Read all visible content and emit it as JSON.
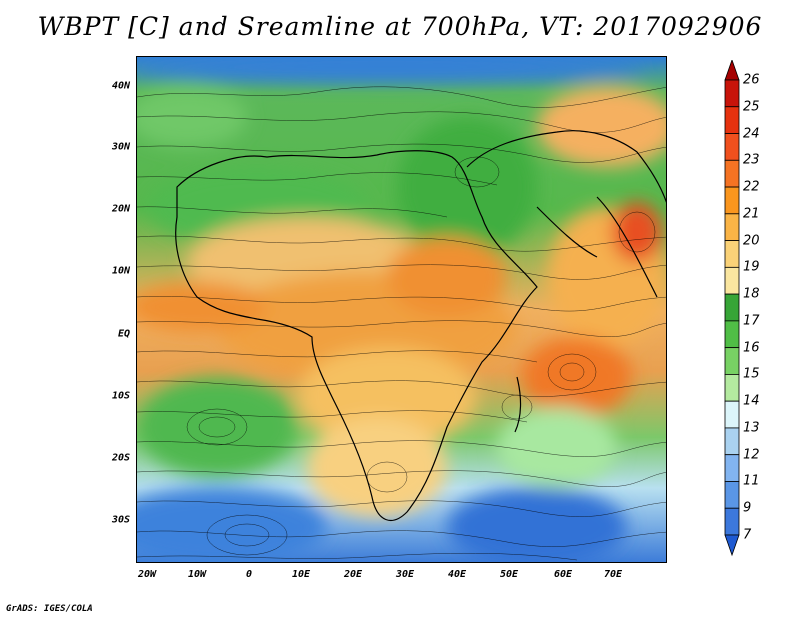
{
  "title": "WBPT [C] and Sreamline at 700hPa, VT: 2017092906",
  "credit": "GrADS: IGES/COLA",
  "lat_labels": [
    "40N",
    "30N",
    "20N",
    "10N",
    "EQ",
    "10S",
    "20S",
    "30S"
  ],
  "lon_labels": [
    "20W",
    "10W",
    "0",
    "10E",
    "20E",
    "30E",
    "40E",
    "50E",
    "60E",
    "70E"
  ],
  "colorbar": {
    "labels": [
      "26",
      "25",
      "24",
      "23",
      "22",
      "21",
      "20",
      "19",
      "18",
      "17",
      "16",
      "15",
      "14",
      "13",
      "12",
      "11",
      "9",
      "7"
    ],
    "colors": [
      "#a50000",
      "#c8140a",
      "#e6320f",
      "#f0501e",
      "#f57323",
      "#fa961e",
      "#fab446",
      "#fad278",
      "#fae6a0",
      "#37a537",
      "#50be46",
      "#78d264",
      "#b4eaa0",
      "#dcf5fa",
      "#aad2f0",
      "#82b4f0",
      "#5a96e6",
      "#3c78dc",
      "#1e5ad2"
    ]
  }
}
